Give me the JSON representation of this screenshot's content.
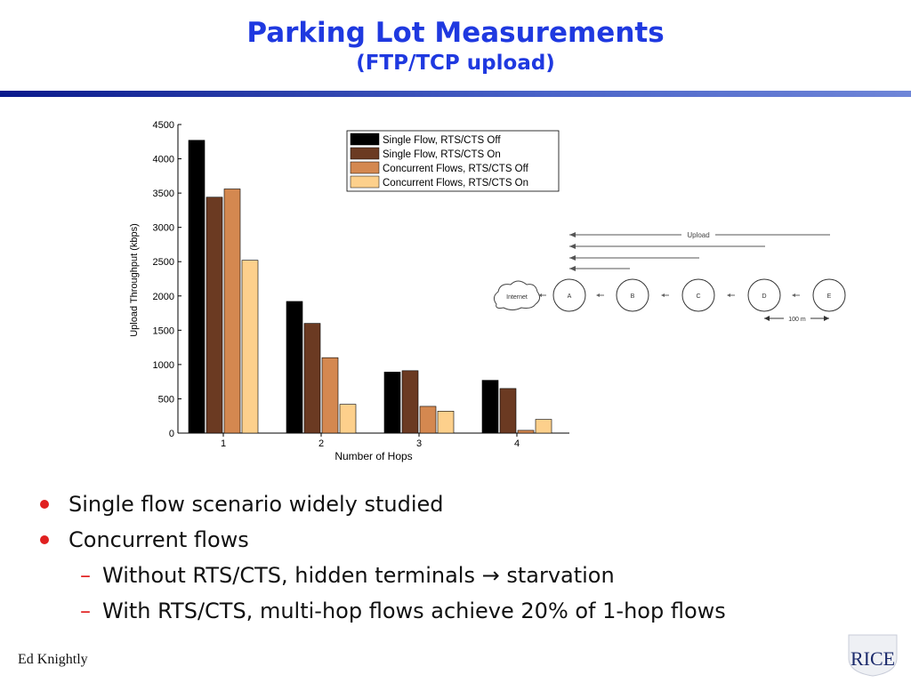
{
  "slide": {
    "title": "Parking Lot Measurements",
    "subtitle": "(FTP/TCP upload)",
    "footer": "Ed Knightly",
    "logo_text": "RICE"
  },
  "bullets": [
    {
      "level": 1,
      "text": "Single flow scenario widely studied"
    },
    {
      "level": 1,
      "text": "Concurrent flows"
    },
    {
      "level": 2,
      "pre": "Without RTS/CTS, hidden terminals ",
      "arrow": "→",
      "post": " starvation"
    },
    {
      "level": 2,
      "text": "With RTS/CTS, multi-hop flows achieve 20% of 1-hop flows"
    }
  ],
  "colors": {
    "title": "#1f39e0",
    "bullet_marker": "#e02020",
    "series": [
      "#000000",
      "#6b3a22",
      "#d48850",
      "#fdd08c"
    ]
  },
  "diagram": {
    "upload_label": "Upload",
    "nodes": [
      "Internet",
      "A",
      "B",
      "C",
      "D",
      "E"
    ],
    "distance_label": "100 m"
  },
  "chart_data": {
    "type": "bar",
    "categories": [
      "1",
      "2",
      "3",
      "4"
    ],
    "series": [
      {
        "name": "Single Flow, RTS/CTS Off",
        "values": [
          4270,
          1920,
          890,
          770
        ]
      },
      {
        "name": "Single Flow, RTS/CTS On",
        "values": [
          3440,
          1600,
          910,
          650
        ]
      },
      {
        "name": "Concurrent Flows, RTS/CTS Off",
        "values": [
          3560,
          1100,
          390,
          40
        ]
      },
      {
        "name": "Concurrent Flows, RTS/CTS On",
        "values": [
          2520,
          420,
          320,
          200
        ]
      }
    ],
    "xlabel": "Number of Hops",
    "ylabel": "Upload Throughput (kbps)",
    "ylim": [
      0,
      4500
    ],
    "yticks": [
      "0",
      "500",
      "1000",
      "1500",
      "2000",
      "2500",
      "3000",
      "3500",
      "4000",
      "4500"
    ],
    "legend": "top-right",
    "grid": false
  }
}
